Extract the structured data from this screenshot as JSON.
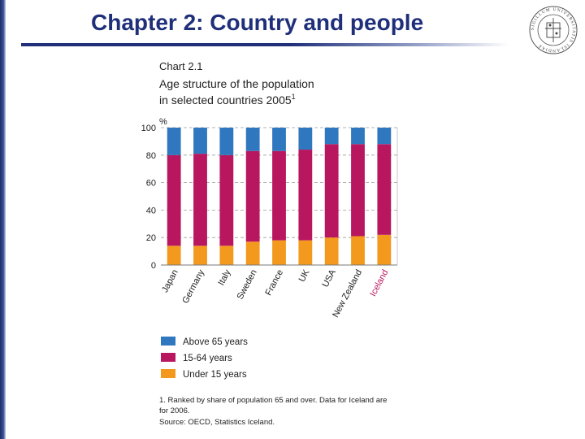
{
  "slide": {
    "title": "Chapter 2: Country and people"
  },
  "logo": {
    "name": "university-seal",
    "text": "SIGILLUM UNIVERSITATIS ISLANDIAE"
  },
  "colors": {
    "title": "#1f2f7a",
    "above65": "#2f78bf",
    "age15_64": "#b8175f",
    "under15": "#f39a1e",
    "iceland_label": "#b8175f",
    "grid": "#9a9a9a"
  },
  "chart_data": {
    "type": "bar",
    "stacked": true,
    "chart_number": "Chart 2.1",
    "title_line1": "Age structure of the population",
    "title_line2": "in selected countries 2005",
    "title_superscript": "1",
    "ylabel": "%",
    "ylim": [
      0,
      100
    ],
    "yticks": [
      0,
      20,
      40,
      60,
      80,
      100
    ],
    "grid": true,
    "legend_position": "bottom",
    "categories": [
      "Japan",
      "Germany",
      "Italy",
      "Sweden",
      "France",
      "UK",
      "USA",
      "New Zealand",
      "Iceland"
    ],
    "highlight_category": "Iceland",
    "series": [
      {
        "name": "Under 15 years",
        "color": "#f39a1e",
        "values": [
          14,
          14,
          14,
          17,
          18,
          18,
          20,
          21,
          22
        ]
      },
      {
        "name": "15-64 years",
        "color": "#b8175f",
        "values": [
          66,
          67,
          66,
          66,
          65,
          66,
          68,
          67,
          66
        ]
      },
      {
        "name": "Above 65 years",
        "color": "#2f78bf",
        "values": [
          20,
          19,
          20,
          17,
          17,
          16,
          12,
          12,
          12
        ]
      }
    ],
    "legend_order": [
      "Above 65 years",
      "15-64 years",
      "Under 15 years"
    ],
    "footnote_line1": "1. Ranked by share of population 65 and over. Data for Iceland are",
    "footnote_line2": "for 2006.",
    "source": "Source: OECD, Statistics Iceland."
  }
}
